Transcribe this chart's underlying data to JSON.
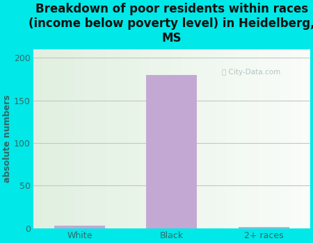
{
  "categories": [
    "White",
    "Black",
    "2+ races"
  ],
  "values": [
    3,
    180,
    1
  ],
  "bar_color": "#c4a8d4",
  "title": "Breakdown of poor residents within races\n(income below poverty level) in Heidelberg,\nMS",
  "ylabel": "absolute numbers",
  "ylim": [
    0,
    210
  ],
  "yticks": [
    0,
    50,
    100,
    150,
    200
  ],
  "background_color": "#00e8e8",
  "plot_bg_left": "#d4ecd4",
  "plot_bg_right": "#f5f5f0",
  "grid_color": "#c0c8c0",
  "title_color": "#111111",
  "label_color": "#336666",
  "tick_color": "#336666",
  "title_fontsize": 12,
  "label_fontsize": 9,
  "tick_fontsize": 9,
  "watermark_text": "City-Data.com",
  "watermark_color": "#aabbbb"
}
